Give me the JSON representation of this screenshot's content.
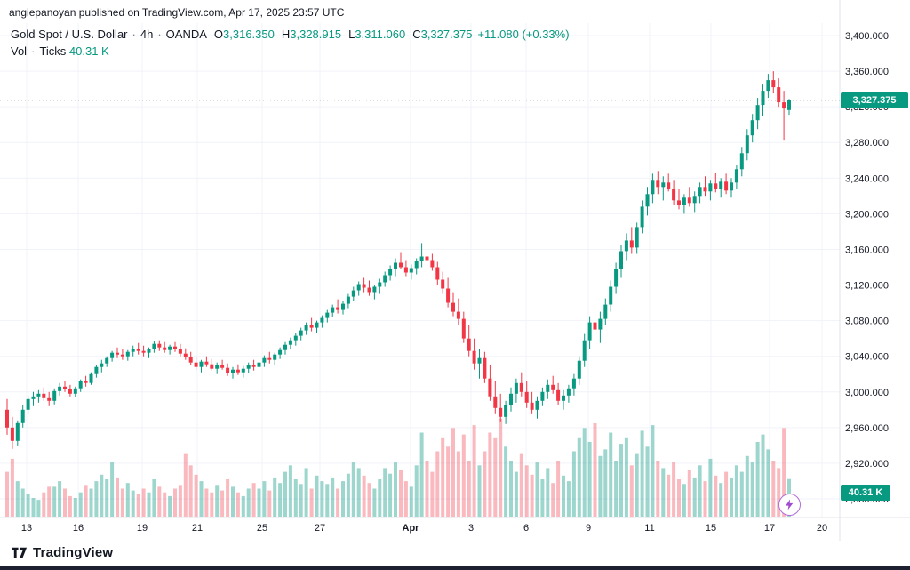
{
  "header": {
    "attribution": "angiepanoyan published on TradingView.com, Apr 17, 2025 23:57 UTC"
  },
  "legend": {
    "title": "Gold Spot / U.S. Dollar",
    "sep": "·",
    "interval": "4h",
    "exchange": "OANDA",
    "o_key": "O",
    "o": "3,316.350",
    "h_key": "H",
    "h": "3,328.915",
    "l_key": "L",
    "l": "3,311.060",
    "c_key": "C",
    "c": "3,327.375",
    "change": "+11.080 (+0.33%)",
    "vol_label": "Vol",
    "ticks_label": "Ticks",
    "vol_value": "40.31 K"
  },
  "footer": {
    "brand": "TradingView"
  },
  "chart_data": {
    "type": "candlestick",
    "title": "Gold Spot / U.S. Dollar",
    "symbol": "XAUUSD",
    "interval": "4h",
    "exchange": "OANDA",
    "last_price": 3327.375,
    "last_price_label": "3,327.375",
    "volume_label": "40.31 K",
    "ohlc_current": {
      "open": 3316.35,
      "high": 3328.915,
      "low": 3311.06,
      "close": 3327.375,
      "change": "+11.080 (+0.33%)"
    },
    "ylim": [
      2880,
      3400
    ],
    "grid": true,
    "price_ticks": [
      {
        "value": 3400,
        "label": "3,400.000"
      },
      {
        "value": 3360,
        "label": "3,360.000"
      },
      {
        "value": 3320,
        "label": "3,320.000"
      },
      {
        "value": 3280,
        "label": "3,280.000"
      },
      {
        "value": 3240,
        "label": "3,240.000"
      },
      {
        "value": 3200,
        "label": "3,200.000"
      },
      {
        "value": 3160,
        "label": "3,160.000"
      },
      {
        "value": 3120,
        "label": "3,120.000"
      },
      {
        "value": 3080,
        "label": "3,080.000"
      },
      {
        "value": 3040,
        "label": "3,040.000"
      },
      {
        "value": 3000,
        "label": "3,000.000"
      },
      {
        "value": 2960,
        "label": "2,960.000"
      },
      {
        "value": 2920,
        "label": "2,920.000"
      },
      {
        "value": 2880,
        "label": "2,880.000"
      }
    ],
    "time_ticks": [
      {
        "label": "13",
        "x": 30
      },
      {
        "label": "16",
        "x": 88
      },
      {
        "label": "19",
        "x": 160
      },
      {
        "label": "21",
        "x": 222
      },
      {
        "label": "25",
        "x": 295
      },
      {
        "label": "27",
        "x": 360
      },
      {
        "label": "Apr",
        "x": 462,
        "bold": true
      },
      {
        "label": "3",
        "x": 530
      },
      {
        "label": "6",
        "x": 592
      },
      {
        "label": "9",
        "x": 662
      },
      {
        "label": "11",
        "x": 731
      },
      {
        "label": "15",
        "x": 800
      },
      {
        "label": "17",
        "x": 866
      },
      {
        "label": "20",
        "x": 925
      }
    ],
    "colors": {
      "up": "#089981",
      "down": "#f23645",
      "vol_up": "rgba(8,153,129,0.4)",
      "vol_down": "rgba(242,54,69,0.35)",
      "grid": "#f0f3fa",
      "axis_line": "#e0e3eb",
      "axis_text": "#131722",
      "close_line": "#787b86",
      "badge": "#089981"
    },
    "candles": [
      [
        2980,
        2992,
        2952,
        2960
      ],
      [
        2960,
        2972,
        2936,
        2945
      ],
      [
        2945,
        2968,
        2940,
        2965
      ],
      [
        2965,
        2985,
        2960,
        2980
      ],
      [
        2980,
        2996,
        2975,
        2992
      ],
      [
        2992,
        3000,
        2984,
        2995
      ],
      [
        2995,
        3002,
        2988,
        2998
      ],
      [
        2998,
        3005,
        2990,
        2993
      ],
      [
        2993,
        3000,
        2984,
        2990
      ],
      [
        2990,
        3004,
        2986,
        3001
      ],
      [
        3001,
        3010,
        2996,
        3006
      ],
      [
        3006,
        3012,
        3000,
        3003
      ],
      [
        3003,
        3008,
        2995,
        2998
      ],
      [
        2998,
        3006,
        2994,
        3004
      ],
      [
        3004,
        3014,
        3000,
        3012
      ],
      [
        3012,
        3018,
        3006,
        3010
      ],
      [
        3010,
        3022,
        3008,
        3020
      ],
      [
        3020,
        3030,
        3016,
        3028
      ],
      [
        3028,
        3036,
        3022,
        3032
      ],
      [
        3032,
        3040,
        3028,
        3038
      ],
      [
        3038,
        3046,
        3034,
        3044
      ],
      [
        3044,
        3050,
        3038,
        3042
      ],
      [
        3042,
        3048,
        3036,
        3040
      ],
      [
        3040,
        3047,
        3035,
        3045
      ],
      [
        3045,
        3052,
        3040,
        3048
      ],
      [
        3048,
        3055,
        3042,
        3046
      ],
      [
        3046,
        3052,
        3040,
        3044
      ],
      [
        3044,
        3050,
        3038,
        3048
      ],
      [
        3048,
        3057,
        3044,
        3054
      ],
      [
        3054,
        3058,
        3046,
        3050
      ],
      [
        3050,
        3056,
        3044,
        3047
      ],
      [
        3047,
        3053,
        3042,
        3051
      ],
      [
        3051,
        3056,
        3045,
        3048
      ],
      [
        3048,
        3054,
        3040,
        3043
      ],
      [
        3043,
        3049,
        3036,
        3039
      ],
      [
        3039,
        3045,
        3030,
        3033
      ],
      [
        3033,
        3040,
        3025,
        3028
      ],
      [
        3028,
        3036,
        3022,
        3034
      ],
      [
        3034,
        3040,
        3028,
        3031
      ],
      [
        3031,
        3037,
        3024,
        3026
      ],
      [
        3026,
        3033,
        3020,
        3030
      ],
      [
        3030,
        3036,
        3025,
        3027
      ],
      [
        3027,
        3032,
        3018,
        3021
      ],
      [
        3021,
        3028,
        3015,
        3025
      ],
      [
        3025,
        3031,
        3019,
        3022
      ],
      [
        3022,
        3029,
        3016,
        3026
      ],
      [
        3026,
        3033,
        3021,
        3030
      ],
      [
        3030,
        3036,
        3024,
        3028
      ],
      [
        3028,
        3035,
        3022,
        3033
      ],
      [
        3033,
        3041,
        3028,
        3038
      ],
      [
        3038,
        3045,
        3032,
        3036
      ],
      [
        3036,
        3044,
        3030,
        3042
      ],
      [
        3042,
        3050,
        3037,
        3047
      ],
      [
        3047,
        3056,
        3042,
        3053
      ],
      [
        3053,
        3061,
        3048,
        3058
      ],
      [
        3058,
        3066,
        3052,
        3063
      ],
      [
        3063,
        3072,
        3058,
        3069
      ],
      [
        3069,
        3078,
        3064,
        3075
      ],
      [
        3075,
        3083,
        3068,
        3072
      ],
      [
        3072,
        3080,
        3066,
        3078
      ],
      [
        3078,
        3086,
        3072,
        3083
      ],
      [
        3083,
        3092,
        3078,
        3089
      ],
      [
        3089,
        3098,
        3084,
        3095
      ],
      [
        3095,
        3104,
        3088,
        3092
      ],
      [
        3092,
        3102,
        3087,
        3099
      ],
      [
        3099,
        3110,
        3094,
        3107
      ],
      [
        3107,
        3118,
        3102,
        3114
      ],
      [
        3114,
        3124,
        3108,
        3121
      ],
      [
        3121,
        3128,
        3112,
        3117
      ],
      [
        3117,
        3125,
        3108,
        3112
      ],
      [
        3112,
        3120,
        3104,
        3118
      ],
      [
        3118,
        3127,
        3110,
        3123
      ],
      [
        3123,
        3135,
        3118,
        3131
      ],
      [
        3131,
        3142,
        3125,
        3138
      ],
      [
        3138,
        3150,
        3130,
        3145
      ],
      [
        3145,
        3157,
        3138,
        3140
      ],
      [
        3140,
        3148,
        3130,
        3134
      ],
      [
        3134,
        3143,
        3126,
        3139
      ],
      [
        3139,
        3150,
        3132,
        3147
      ],
      [
        3147,
        3167,
        3140,
        3152
      ],
      [
        3152,
        3160,
        3143,
        3148
      ],
      [
        3148,
        3155,
        3136,
        3140
      ],
      [
        3140,
        3146,
        3120,
        3126
      ],
      [
        3126,
        3135,
        3110,
        3116
      ],
      [
        3116,
        3128,
        3095,
        3100
      ],
      [
        3100,
        3112,
        3085,
        3090
      ],
      [
        3090,
        3105,
        3075,
        3082
      ],
      [
        3082,
        3090,
        3055,
        3060
      ],
      [
        3060,
        3075,
        3040,
        3046
      ],
      [
        3046,
        3060,
        3025,
        3032
      ],
      [
        3032,
        3048,
        3015,
        3038
      ],
      [
        3038,
        3045,
        3010,
        3015
      ],
      [
        3015,
        3030,
        2990,
        2995
      ],
      [
        2995,
        3012,
        2975,
        2982
      ],
      [
        2982,
        2998,
        2966,
        2972
      ],
      [
        2972,
        2990,
        2964,
        2985
      ],
      [
        2985,
        3005,
        2978,
        2998
      ],
      [
        2998,
        3015,
        2988,
        3010
      ],
      [
        3010,
        3022,
        2995,
        3000
      ],
      [
        3000,
        3012,
        2982,
        2988
      ],
      [
        2988,
        3000,
        2975,
        2980
      ],
      [
        2980,
        2995,
        2970,
        2990
      ],
      [
        2990,
        3005,
        2984,
        3000
      ],
      [
        3000,
        3014,
        2992,
        3008
      ],
      [
        3008,
        3018,
        2998,
        3002
      ],
      [
        3002,
        3010,
        2985,
        2990
      ],
      [
        2990,
        3002,
        2980,
        2996
      ],
      [
        2996,
        3008,
        2988,
        3004
      ],
      [
        3004,
        3020,
        2996,
        3015
      ],
      [
        3015,
        3040,
        3008,
        3035
      ],
      [
        3035,
        3065,
        3028,
        3058
      ],
      [
        3058,
        3085,
        3048,
        3078
      ],
      [
        3078,
        3100,
        3062,
        3070
      ],
      [
        3070,
        3090,
        3055,
        3082
      ],
      [
        3082,
        3105,
        3075,
        3098
      ],
      [
        3098,
        3125,
        3090,
        3118
      ],
      [
        3118,
        3145,
        3110,
        3138
      ],
      [
        3138,
        3165,
        3128,
        3158
      ],
      [
        3158,
        3178,
        3148,
        3170
      ],
      [
        3170,
        3185,
        3155,
        3162
      ],
      [
        3162,
        3190,
        3155,
        3185
      ],
      [
        3185,
        3215,
        3178,
        3208
      ],
      [
        3208,
        3230,
        3198,
        3222
      ],
      [
        3222,
        3245,
        3212,
        3238
      ],
      [
        3238,
        3248,
        3222,
        3230
      ],
      [
        3230,
        3242,
        3215,
        3235
      ],
      [
        3235,
        3245,
        3225,
        3228
      ],
      [
        3228,
        3238,
        3210,
        3215
      ],
      [
        3215,
        3228,
        3205,
        3210
      ],
      [
        3210,
        3222,
        3200,
        3218
      ],
      [
        3218,
        3230,
        3208,
        3212
      ],
      [
        3212,
        3225,
        3202,
        3220
      ],
      [
        3220,
        3235,
        3212,
        3230
      ],
      [
        3230,
        3242,
        3220,
        3225
      ],
      [
        3225,
        3238,
        3215,
        3234
      ],
      [
        3234,
        3246,
        3224,
        3228
      ],
      [
        3228,
        3240,
        3218,
        3236
      ],
      [
        3236,
        3245,
        3222,
        3226
      ],
      [
        3226,
        3240,
        3218,
        3235
      ],
      [
        3235,
        3255,
        3228,
        3250
      ],
      [
        3250,
        3275,
        3242,
        3268
      ],
      [
        3268,
        3295,
        3260,
        3288
      ],
      [
        3288,
        3312,
        3280,
        3305
      ],
      [
        3305,
        3330,
        3295,
        3322
      ],
      [
        3322,
        3345,
        3310,
        3338
      ],
      [
        3338,
        3357,
        3330,
        3350
      ],
      [
        3350,
        3360,
        3335,
        3342
      ],
      [
        3342,
        3352,
        3320,
        3325
      ],
      [
        3325,
        3338,
        3282,
        3318
      ],
      [
        3316.35,
        3328.915,
        3311.06,
        3327.375
      ]
    ],
    "volumes": [
      48,
      62,
      38,
      30,
      24,
      20,
      18,
      26,
      32,
      32,
      38,
      30,
      22,
      20,
      26,
      34,
      30,
      38,
      45,
      40,
      58,
      42,
      30,
      36,
      28,
      24,
      30,
      26,
      40,
      32,
      26,
      22,
      30,
      34,
      68,
      55,
      45,
      38,
      30,
      26,
      34,
      28,
      40,
      32,
      26,
      22,
      30,
      36,
      30,
      38,
      28,
      42,
      36,
      48,
      55,
      40,
      35,
      52,
      30,
      44,
      38,
      35,
      42,
      30,
      38,
      46,
      58,
      52,
      44,
      36,
      30,
      40,
      52,
      46,
      58,
      50,
      38,
      32,
      55,
      90,
      60,
      48,
      70,
      85,
      75,
      95,
      70,
      88,
      60,
      98,
      55,
      70,
      90,
      85,
      105,
      75,
      60,
      48,
      68,
      55,
      45,
      58,
      40,
      52,
      36,
      60,
      44,
      38,
      70,
      85,
      95,
      80,
      100,
      65,
      72,
      90,
      60,
      78,
      85,
      55,
      68,
      92,
      75,
      98,
      60,
      52,
      45,
      58,
      40,
      35,
      50,
      42,
      55,
      38,
      62,
      44,
      36,
      48,
      42,
      55,
      48,
      65,
      58,
      80,
      88,
      72,
      60,
      52,
      95,
      40.31
    ]
  }
}
